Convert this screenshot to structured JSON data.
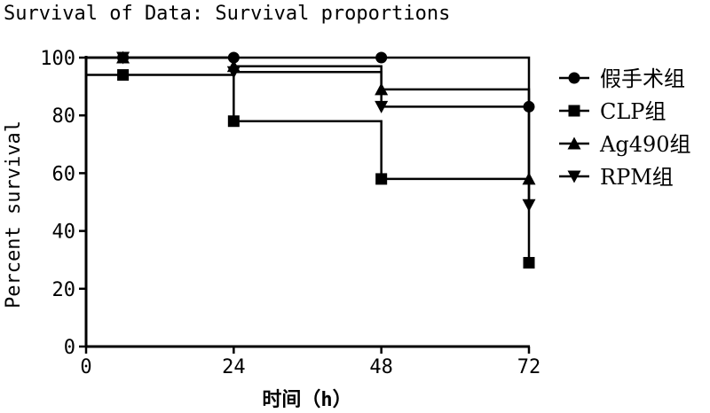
{
  "chart_data": {
    "type": "line",
    "subtype": "kaplan-meier step survival curve",
    "title": "Survival of Data: Survival proportions",
    "xlabel": "时间（h）",
    "ylabel": "Percent survival",
    "xlim": [
      0,
      72
    ],
    "ylim": [
      0,
      100
    ],
    "xticks": [
      0,
      24,
      48,
      72
    ],
    "yticks": [
      0,
      20,
      40,
      60,
      80,
      100
    ],
    "grid": false,
    "legend_position": "right",
    "series": [
      {
        "name": "假手术组",
        "marker": "circle",
        "steps": [
          [
            0,
            100
          ],
          [
            72,
            83
          ]
        ],
        "markers": [
          [
            6,
            100
          ],
          [
            24,
            100
          ],
          [
            48,
            100
          ],
          [
            72,
            83
          ]
        ]
      },
      {
        "name": "CLP组",
        "marker": "square",
        "steps": [
          [
            0,
            94
          ],
          [
            24,
            78
          ],
          [
            48,
            58
          ],
          [
            72,
            29
          ]
        ],
        "markers": [
          [
            6,
            94
          ],
          [
            24,
            78
          ],
          [
            48,
            58
          ],
          [
            72,
            29
          ]
        ]
      },
      {
        "name": "Ag490组",
        "marker": "triangle-up",
        "steps": [
          [
            0,
            100
          ],
          [
            24,
            97
          ],
          [
            48,
            89
          ],
          [
            72,
            58
          ]
        ],
        "markers": [
          [
            6,
            100
          ],
          [
            24,
            97
          ],
          [
            48,
            89
          ],
          [
            72,
            58
          ]
        ]
      },
      {
        "name": "RPM组",
        "marker": "triangle-down",
        "steps": [
          [
            0,
            100
          ],
          [
            24,
            95
          ],
          [
            48,
            83
          ],
          [
            72,
            49
          ]
        ],
        "markers": [
          [
            6,
            100
          ],
          [
            24,
            95
          ],
          [
            48,
            83
          ],
          [
            72,
            49
          ]
        ]
      }
    ]
  }
}
